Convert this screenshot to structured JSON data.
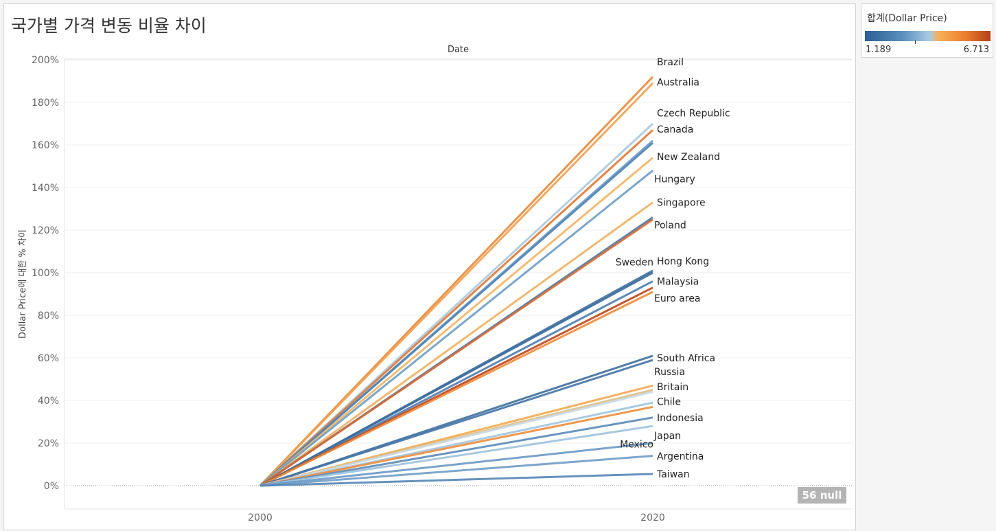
{
  "title": "국가별 가격 변동 비율 차이",
  "legend": {
    "title": "합계(Dollar Price)",
    "min_label": "1.189",
    "max_label": "6.713",
    "min": 1.189,
    "max": 6.713,
    "marker_value": 3.4
  },
  "null_badge": "56 null",
  "chart_data": {
    "type": "line",
    "title": "국가별 가격 변동 비율 차이",
    "column_header": "Date",
    "xlabel": "",
    "ylabel": "Dollar Price에 대한 % 차이",
    "x": [
      "2000",
      "2020"
    ],
    "x_ticks": [
      "2000",
      "2020"
    ],
    "ylim": [
      -10,
      205
    ],
    "y_ticks": [
      0,
      20,
      40,
      60,
      80,
      100,
      120,
      140,
      160,
      180,
      200
    ],
    "y_tick_labels": [
      "0%",
      "20%",
      "40%",
      "60%",
      "80%",
      "100%",
      "120%",
      "140%",
      "160%",
      "180%",
      "200%"
    ],
    "series": [
      {
        "name": "Brazil",
        "values": [
          0,
          192
        ],
        "color": "#e8883a",
        "label": "Brazil",
        "label_side": "right",
        "label_y": 199
      },
      {
        "name": "Australia",
        "values": [
          0,
          189
        ],
        "color": "#f0a050",
        "label": "Australia",
        "label_side": "right",
        "label_y": 189.5
      },
      {
        "name": "Czech Republic",
        "values": [
          0,
          170
        ],
        "color": "#a8c8e0",
        "label": "Czech Republic",
        "label_side": "right",
        "label_y": 175
      },
      {
        "name": "Canada",
        "values": [
          0,
          167
        ],
        "color": "#e07530",
        "label": "Canada",
        "label_side": "right",
        "label_y": 167.5
      },
      {
        "name": "Canada-2",
        "values": [
          0,
          162
        ],
        "color": "#6c9cc8",
        "label": "",
        "label_side": "right",
        "label_y": 0
      },
      {
        "name": "Canada-3",
        "values": [
          0,
          161
        ],
        "color": "#4f82b3",
        "label": "",
        "label_side": "right",
        "label_y": 0
      },
      {
        "name": "New Zealand",
        "values": [
          0,
          154
        ],
        "color": "#f2b563",
        "label": "New Zealand",
        "label_side": "right",
        "label_y": 154.5
      },
      {
        "name": "Hungary",
        "values": [
          0,
          148
        ],
        "color": "#6a9cc6",
        "label": "Hungary",
        "label_side": "right",
        "label_y": 144
      },
      {
        "name": "Singapore",
        "values": [
          0,
          133
        ],
        "color": "#f0b060",
        "label": "Singapore",
        "label_side": "right",
        "label_y": 133
      },
      {
        "name": "Poland",
        "values": [
          0,
          126
        ],
        "color": "#4a78a8",
        "label": "Poland",
        "label_side": "right",
        "label_y": 122.5
      },
      {
        "name": "Poland-2",
        "values": [
          0,
          125
        ],
        "color": "#d86830",
        "label": "",
        "label_side": "right",
        "label_y": 0
      },
      {
        "name": "Sweden",
        "values": [
          0,
          101
        ],
        "color": "#3e6e9e",
        "label": "Sweden",
        "label_side": "left",
        "label_y": 105
      },
      {
        "name": "Hong Kong",
        "values": [
          0,
          100
        ],
        "color": "#3a6a9b",
        "label": "Hong Kong",
        "label_side": "right",
        "label_y": 105.5
      },
      {
        "name": "Malaysia",
        "values": [
          0,
          96
        ],
        "color": "#4a7cb0",
        "label": "Malaysia",
        "label_side": "right",
        "label_y": 96
      },
      {
        "name": "Euro area",
        "values": [
          0,
          93
        ],
        "color": "#c0441a",
        "label": "Euro area",
        "label_side": "right",
        "label_y": 88
      },
      {
        "name": "Euro area-2",
        "values": [
          0,
          91
        ],
        "color": "#ec8a38",
        "label": "",
        "label_side": "right",
        "label_y": 0
      },
      {
        "name": "South Africa",
        "values": [
          0,
          61
        ],
        "color": "#3e6f9f",
        "label": "South Africa",
        "label_side": "right",
        "label_y": 60
      },
      {
        "name": "Russia",
        "values": [
          0,
          59
        ],
        "color": "#4473a6",
        "label": "Russia",
        "label_side": "right",
        "label_y": 53.5
      },
      {
        "name": "Britain",
        "values": [
          0,
          47
        ],
        "color": "#f2a84e",
        "label": "Britain",
        "label_side": "right",
        "label_y": 46.5
      },
      {
        "name": "Britain-2",
        "values": [
          0,
          45
        ],
        "color": "#d9c08a",
        "label": "",
        "label_side": "right",
        "label_y": 0
      },
      {
        "name": "Britain-3",
        "values": [
          0,
          44
        ],
        "color": "#c9d8e4",
        "label": "",
        "label_side": "right",
        "label_y": 0
      },
      {
        "name": "Chile",
        "values": [
          0,
          39
        ],
        "color": "#a0c4de",
        "label": "Chile",
        "label_side": "right",
        "label_y": 39.5
      },
      {
        "name": "Chile-2",
        "values": [
          0,
          37
        ],
        "color": "#ee8c3a",
        "label": "",
        "label_side": "right",
        "label_y": 0
      },
      {
        "name": "Indonesia",
        "values": [
          0,
          32
        ],
        "color": "#5a89ba",
        "label": "Indonesia",
        "label_side": "right",
        "label_y": 32
      },
      {
        "name": "Japan",
        "values": [
          0,
          28
        ],
        "color": "#9dc2dd",
        "label": "Japan",
        "label_side": "right",
        "label_y": 23.5
      },
      {
        "name": "Mexico",
        "values": [
          0,
          20
        ],
        "color": "#6a98c5",
        "label": "Mexico",
        "label_side": "left",
        "label_y": 19.5
      },
      {
        "name": "Argentina",
        "values": [
          0,
          14
        ],
        "color": "#6f9cc6",
        "label": "Argentina",
        "label_side": "right",
        "label_y": 13.8
      },
      {
        "name": "Taiwan",
        "values": [
          0,
          5.5
        ],
        "color": "#5585b5",
        "label": "Taiwan",
        "label_side": "right",
        "label_y": 5.5
      }
    ]
  }
}
